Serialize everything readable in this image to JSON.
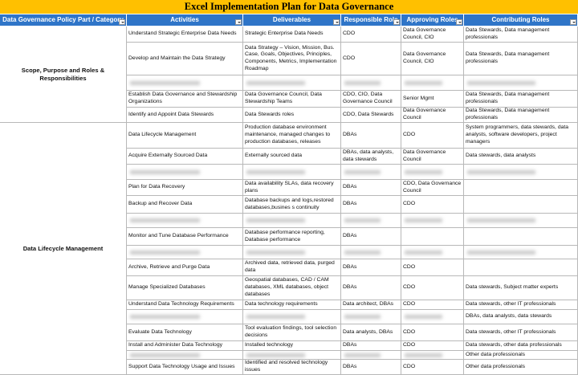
{
  "header": {
    "title": "Excel Implementation Plan for Data Governance"
  },
  "table": {
    "columns": [
      "Data Governance Policy Part / Category",
      "Activities",
      "Deliverables",
      "Responsible Role",
      "Approving Roles",
      "Contributing Roles"
    ],
    "sections": [
      {
        "category": "Scope, Purpose and Roles & Responsibilities",
        "rows": [
          [
            "Understand Strategic Enterprise Data Needs",
            "Strategic Enterprise Data Needs",
            "CDO",
            "Data Governance Council, CIO",
            "Data Stewards, Data management professionals"
          ],
          [
            "Develop and Maintain the Data Strategy",
            "Data Strategy – Vision, Mission, Bus. Case, Goals, Objectives, Principles, Components, Metrics, Implementation Roadmap",
            "CDO",
            "Data Governance Council, CIO",
            "Data Stewards, Data management professionals"
          ],
          [
            null,
            null,
            null,
            null,
            null
          ],
          [
            "Establish Data Governance and Stewardship Organizations",
            "Data Governance Council, Data Stewardship Teams",
            "CDO, CIO, Data Governance Council",
            "Senior Mgmt",
            "Data Stewards, Data management professionals"
          ],
          [
            "Identify and Appoint Data Stewards",
            "Data Stewards roles",
            "CDO, Data Stewards",
            "Data Governance Council",
            "Data Stewards, Data management professionals"
          ]
        ]
      },
      {
        "category": "Data Lifecycle Management",
        "rows": [
          [
            "Data Lifecycle Management",
            "Production database environment maintenance, managed changes to production databases, releases",
            "DBAs",
            "CDO",
            "System programmers, data stewards, data analysts, software developers, project managers"
          ],
          [
            "Acquire Externally Sourced Data",
            "Externally sourced data",
            "DBAs, data analysts, data stewards",
            "Data Governance Council",
            "Data stewards, data analysts"
          ],
          [
            null,
            null,
            null,
            null,
            null
          ],
          [
            "Plan for Data Recovery",
            "Data availability SLAs, data recovery plans",
            "DBAs",
            "CDO, Data Governance Council",
            null
          ],
          [
            "Backup and Recover Data",
            "Database backups and logs,restored databases,busines s continuity",
            "DBAs",
            "CDO",
            null
          ],
          [
            null,
            null,
            null,
            null,
            null
          ],
          [
            "Monitor and Tune Database Performance",
            "Database performance reporting, Database performance",
            "DBAs",
            null,
            null
          ],
          [
            null,
            null,
            null,
            null,
            null
          ],
          [
            "Archive, Retrieve and Purge Data",
            "Archived data, retrieved data, purged data",
            "DBAs",
            "CDO",
            null
          ],
          [
            "Manage Specialized Databases",
            "Geospatial databases, CAD / CAM databases, XML databases, object databases",
            "DBAs",
            "CDO",
            "Data stewards, Subject matter experts"
          ],
          [
            "Understand Data Technology Requirements",
            "Data technology requirements",
            "Data architect, DBAs",
            "CDO",
            "Data stewards, other IT professionals"
          ],
          [
            null,
            null,
            null,
            null,
            "DBAs, data analysts, data stewards"
          ],
          [
            "Evaluate Data Technology",
            "Tool evaluation findings, tool selection decisions",
            "Data analysts, DBAs",
            "CDO",
            "Data stewards, other IT professionals"
          ],
          [
            "Install and Administer Data Technology",
            "Installed technology",
            "DBAs",
            "CDO",
            "Data stewards, other data professionals"
          ],
          [
            null,
            null,
            null,
            null,
            "Other data professionals"
          ],
          [
            "Support Data Technology Usage and Issues",
            "Identified and resolved technology issues",
            "DBAs",
            "CDO",
            "Other data professionals"
          ]
        ]
      }
    ]
  }
}
